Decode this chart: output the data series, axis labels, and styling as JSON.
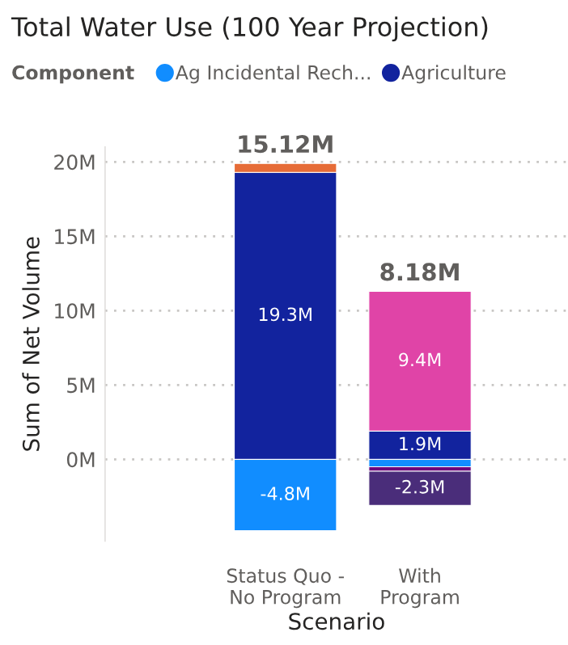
{
  "chart_data": {
    "type": "bar",
    "stacked": true,
    "title": "Total Water Use (100 Year Projection)",
    "xlabel": "Scenario",
    "ylabel": "Sum of Net Volume",
    "legend_title": "Component",
    "legend": "top",
    "categories": [
      "Status Quo - No Program",
      "With Program"
    ],
    "series": [
      {
        "name": "Ag Incidental Rech...",
        "color": "#118dff",
        "values": [
          -4.8,
          -0.5
        ],
        "value_labels": [
          "-4.8M",
          null
        ]
      },
      {
        "name": "Agriculture",
        "color": "#12239e",
        "values": [
          19.3,
          1.9
        ],
        "value_labels": [
          "19.3M",
          "1.9M"
        ]
      },
      {
        "color": "#e66c37",
        "values": [
          0.6,
          null
        ]
      },
      {
        "color": "#e044a7",
        "values": [
          null,
          9.4
        ],
        "value_labels": [
          null,
          "9.4M"
        ]
      },
      {
        "color": "#6b007b",
        "values": [
          null,
          -0.3
        ]
      },
      {
        "color": "#4a2d7a",
        "values": [
          null,
          -2.3
        ],
        "value_labels": [
          null,
          "-2.3M"
        ]
      }
    ],
    "totals": [
      "15.12M",
      "8.18M"
    ],
    "ylim": [
      -5.5,
      21
    ],
    "yticks": [
      {
        "value": 0,
        "label": "0M"
      },
      {
        "value": 5,
        "label": "5M"
      },
      {
        "value": 10,
        "label": "10M"
      },
      {
        "value": 15,
        "label": "15M"
      },
      {
        "value": 20,
        "label": "20M"
      }
    ],
    "grid": "y"
  }
}
